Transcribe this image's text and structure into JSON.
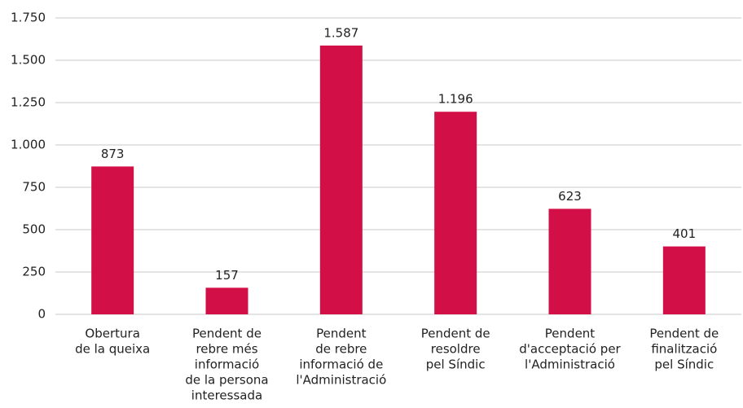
{
  "chart_data": {
    "type": "bar",
    "categories": [
      [
        "Obertura",
        "de la queixa"
      ],
      [
        "Pendent de",
        "rebre més",
        "informació",
        "de la persona",
        "interessada"
      ],
      [
        "Pendent",
        "de rebre",
        "informació de",
        "l'Administració"
      ],
      [
        "Pendent de",
        "resoldre",
        "pel Síndic"
      ],
      [
        "Pendent",
        "d'acceptació per",
        "l'Administració"
      ],
      [
        "Pendent de",
        "finalització",
        "pel Síndic"
      ]
    ],
    "values": [
      873,
      157,
      1587,
      1196,
      623,
      401
    ],
    "value_labels": [
      "873",
      "157",
      "1.587",
      "1.196",
      "623",
      "401"
    ],
    "color": "#d20f46",
    "ylim": [
      0,
      1750
    ],
    "yticks": [
      0,
      250,
      500,
      750,
      {
        "value": 1000,
        "label": "1.000"
      },
      {
        "value": 1250,
        "label": "1.250"
      },
      {
        "value": 1500,
        "label": "1.500"
      },
      {
        "value": 1750,
        "label": "1.750"
      }
    ],
    "grid": true
  }
}
